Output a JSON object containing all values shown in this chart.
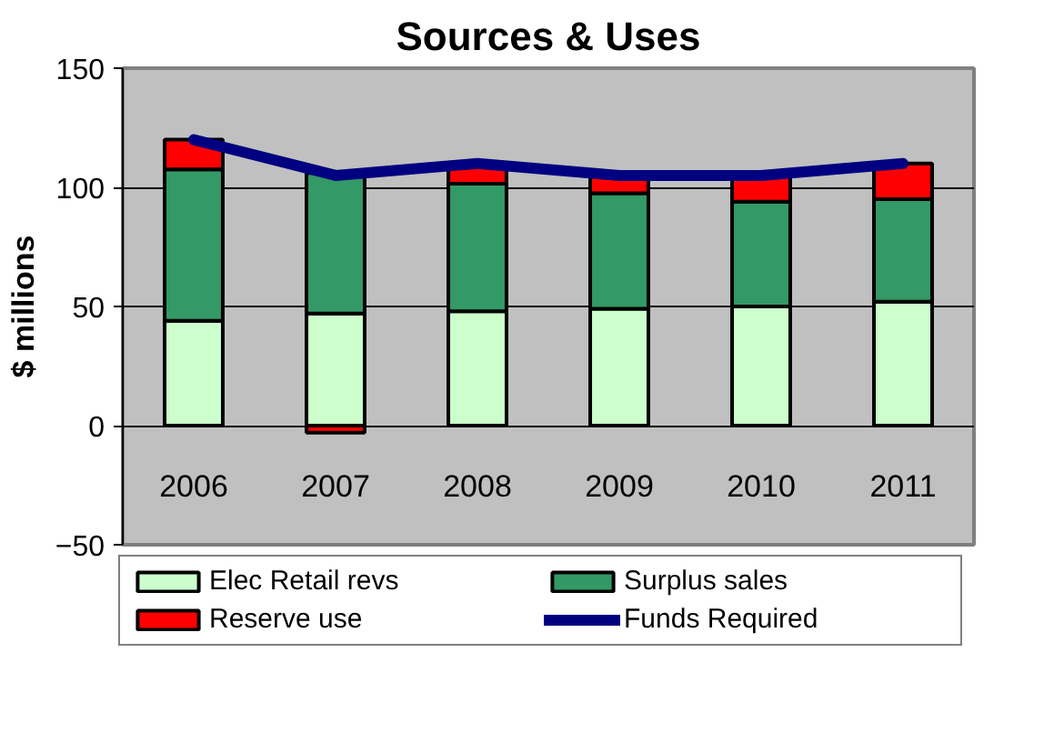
{
  "chart_data": {
    "type": "bar",
    "title": "Sources & Uses",
    "ylabel": "$ millions",
    "stacked": true,
    "categories": [
      "2006",
      "2007",
      "2008",
      "2009",
      "2010",
      "2011"
    ],
    "series": [
      {
        "name": "Elec Retail revs",
        "color": "#ccffcc",
        "values": [
          44,
          47,
          48,
          49,
          50,
          52
        ]
      },
      {
        "name": "Surplus sales",
        "color": "#339966",
        "values": [
          63.5,
          59,
          53.5,
          48.5,
          44,
          43
        ]
      },
      {
        "name": "Reserve use",
        "color": "#ff0000",
        "values": [
          12.5,
          -3,
          8.5,
          7.5,
          11,
          15
        ]
      },
      {
        "name": "Funds Required",
        "type": "line",
        "color": "#000080",
        "values": [
          120,
          105,
          110,
          105,
          105,
          110
        ]
      }
    ],
    "ylim": [
      -50,
      150
    ],
    "yticks": [
      -50,
      0,
      50,
      100,
      150
    ],
    "grid": "y",
    "legend": "bottom"
  }
}
